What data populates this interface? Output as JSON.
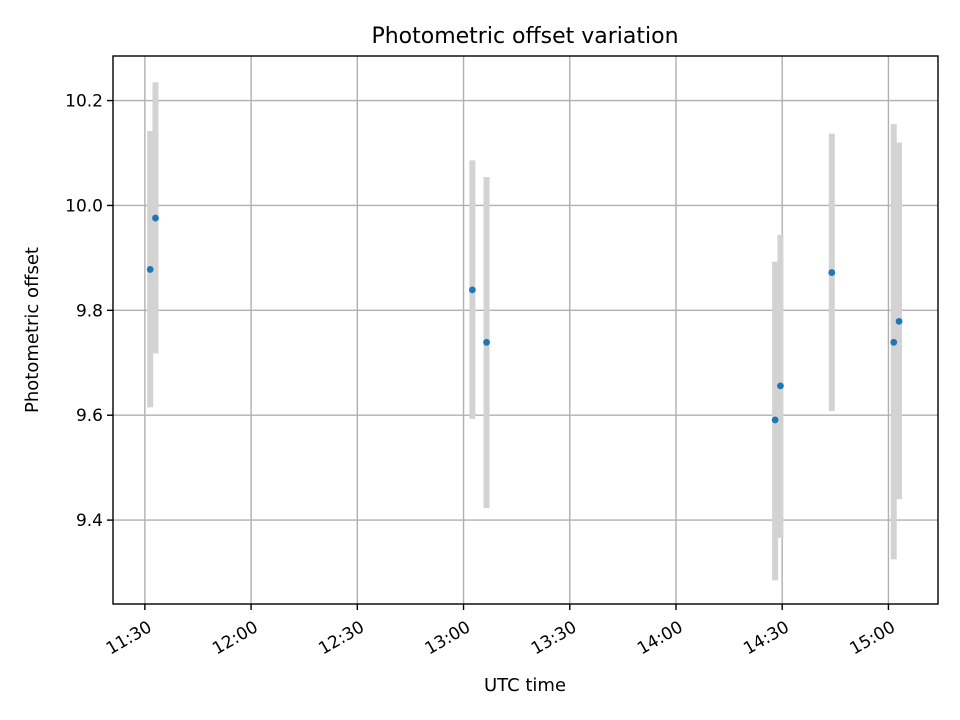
{
  "chart_data": {
    "type": "scatter",
    "title": "Photometric offset variation",
    "xlabel": "UTC time",
    "ylabel": "Photometric offset",
    "x_ticks": [
      "11:30",
      "12:00",
      "12:30",
      "13:00",
      "13:30",
      "14:00",
      "14:30",
      "15:00"
    ],
    "y_ticks": [
      9.4,
      9.6,
      9.8,
      10.0,
      10.2
    ],
    "xlim": [
      "11:21",
      "15:14"
    ],
    "ylim": [
      9.24,
      10.285
    ],
    "grid": true,
    "colors": {
      "points": "#1f77b4",
      "errorbars": "#d3d3d3"
    },
    "points": [
      {
        "x": "11:31:30",
        "y": 9.878,
        "yerr_low": 9.615,
        "yerr_high": 10.142
      },
      {
        "x": "11:33:00",
        "y": 9.976,
        "yerr_low": 9.718,
        "yerr_high": 10.235
      },
      {
        "x": "13:02:30",
        "y": 9.839,
        "yerr_low": 9.593,
        "yerr_high": 10.086
      },
      {
        "x": "13:06:30",
        "y": 9.739,
        "yerr_low": 9.423,
        "yerr_high": 10.054
      },
      {
        "x": "14:28:00",
        "y": 9.591,
        "yerr_low": 9.285,
        "yerr_high": 9.893
      },
      {
        "x": "14:29:30",
        "y": 9.656,
        "yerr_low": 9.366,
        "yerr_high": 9.944
      },
      {
        "x": "14:44:00",
        "y": 9.872,
        "yerr_low": 9.608,
        "yerr_high": 10.137
      },
      {
        "x": "15:01:30",
        "y": 9.739,
        "yerr_low": 9.325,
        "yerr_high": 10.155
      },
      {
        "x": "15:03:00",
        "y": 9.779,
        "yerr_low": 9.44,
        "yerr_high": 10.12
      }
    ]
  }
}
